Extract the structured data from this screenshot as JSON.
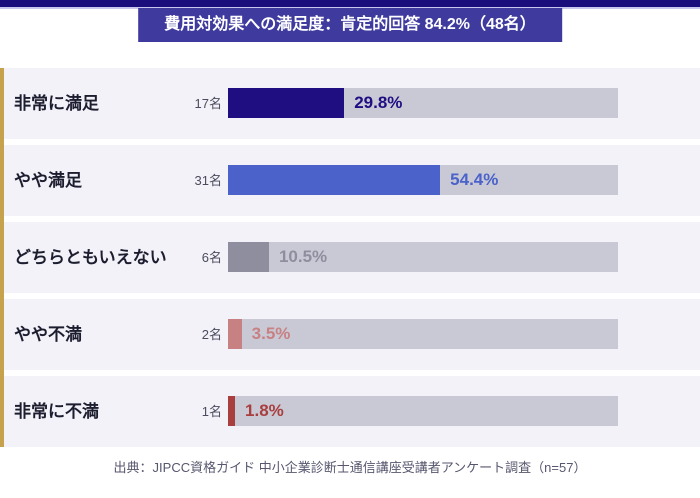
{
  "page": {
    "background": "#ffffff",
    "top_accent_color": "#1a0e7d",
    "left_stripe_color": "#c7a24e"
  },
  "header": {
    "title": "費用対効果への満足度：肯定的回答 84.2%（48名）",
    "background": "#3e3a9e",
    "text_color": "#ffffff"
  },
  "chart_data": {
    "type": "bar",
    "orientation": "horizontal",
    "title": "費用対効果への満足度：肯定的回答 84.2%（48名）",
    "xlim": [
      0,
      100
    ],
    "grid": false,
    "legend": false,
    "categories": [
      "非常に満足",
      "やや満足",
      "どちらともいえない",
      "やや不満",
      "非常に不満"
    ],
    "values": [
      29.8,
      54.4,
      10.5,
      3.5,
      1.8
    ],
    "value_labels": [
      "29.8%",
      "54.4%",
      "10.5%",
      "3.5%",
      "1.8%"
    ],
    "counts": [
      "17名",
      "31名",
      "6名",
      "2名",
      "1名"
    ],
    "bar_colors": [
      "#1e0e82",
      "#4a62c9",
      "#8e8e9e",
      "#c88182",
      "#a83e3e"
    ],
    "track_color": "#c9c9d6",
    "row_background": "#f2f2f8"
  },
  "footer": {
    "source": "出典：JIPCC資格ガイド 中小企業診断士通信講座受講者アンケート調査（n=57）"
  }
}
